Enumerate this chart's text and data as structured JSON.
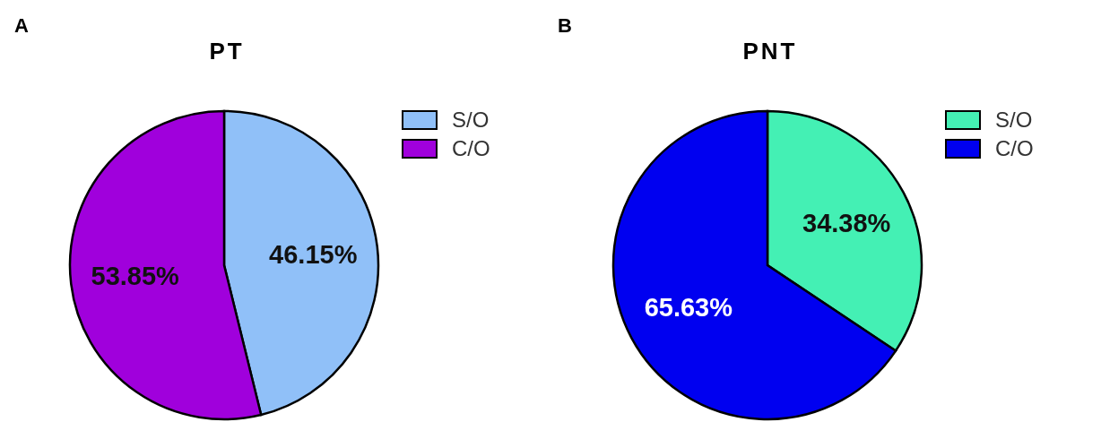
{
  "chart_data": [
    {
      "type": "pie",
      "title": "PT",
      "annotations": [
        "A"
      ],
      "categories": [
        "S/O",
        "C/O"
      ],
      "values": [
        46.15,
        53.85
      ],
      "colors": [
        "#90c0f8",
        "#a000dc"
      ],
      "value_labels": [
        "46.15%",
        "53.85%"
      ],
      "legend": "top right"
    },
    {
      "type": "pie",
      "title": "PNT",
      "annotations": [
        "B"
      ],
      "categories": [
        "S/O",
        "C/O"
      ],
      "values": [
        34.38,
        65.63
      ],
      "colors": [
        "#44f0b4",
        "#0000f0"
      ],
      "value_labels": [
        "34.38%",
        "65.63%"
      ],
      "legend": "top right"
    }
  ]
}
